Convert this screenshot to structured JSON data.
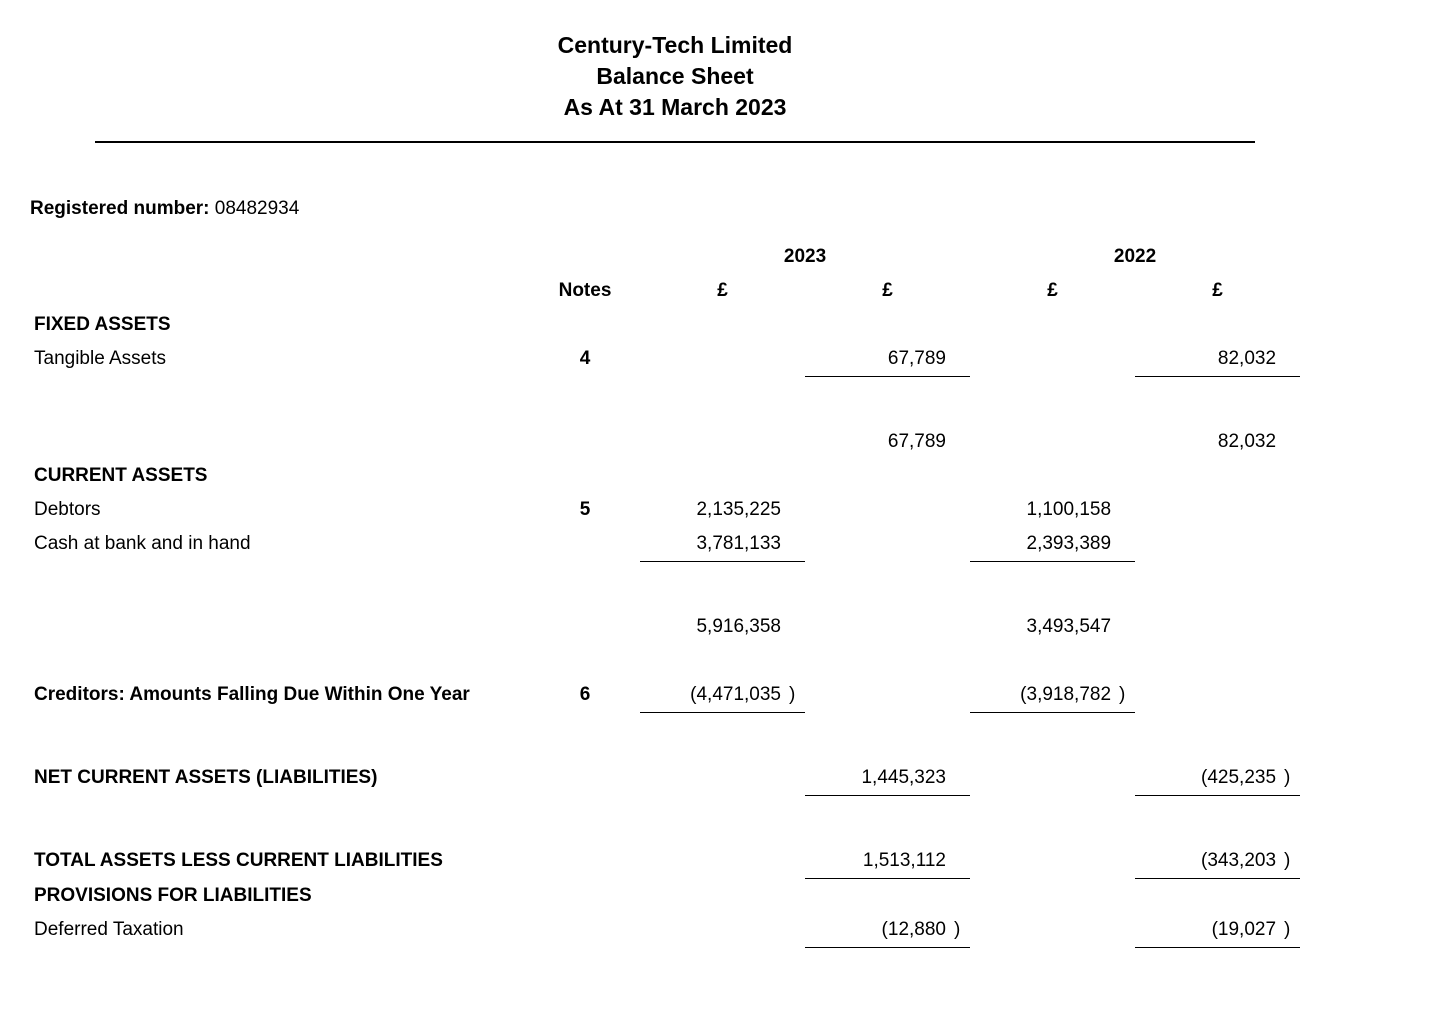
{
  "title": {
    "company": "Century-Tech Limited",
    "statement": "Balance Sheet",
    "asat": "As At 31 March 2023"
  },
  "registered": {
    "label": "Registered number:",
    "value": "08482934"
  },
  "headers": {
    "notes": "Notes",
    "year_2023": "2023",
    "year_2022": "2022",
    "currency": "£"
  },
  "sections": {
    "fixed_assets": "FIXED ASSETS",
    "current_assets": "CURRENT ASSETS",
    "creditors_within_one_year": "Creditors: Amounts Falling Due Within One Year",
    "net_current": "NET CURRENT ASSETS (LIABILITIES)",
    "total_less_current": "TOTAL ASSETS LESS CURRENT LIABILITIES",
    "provisions": "PROVISIONS FOR LIABILITIES"
  },
  "rows": {
    "tangible_assets": {
      "label": "Tangible Assets",
      "note": "4",
      "v2023_outer": "67,789",
      "v2022_outer": "82,032"
    },
    "fixed_assets_total": {
      "v2023_outer": "67,789",
      "v2022_outer": "82,032"
    },
    "debtors": {
      "label": "Debtors",
      "note": "5",
      "v2023_inner": "2,135,225",
      "v2022_inner": "1,100,158"
    },
    "cash": {
      "label": "Cash at bank and in hand",
      "v2023_inner": "3,781,133",
      "v2022_inner": "2,393,389"
    },
    "current_assets_total": {
      "v2023_inner": "5,916,358",
      "v2022_inner": "3,493,547"
    },
    "creditors": {
      "note": "6",
      "v2023_inner": "(4,471,035",
      "v2023_inner_p": ")",
      "v2022_inner": "(3,918,782",
      "v2022_inner_p": ")"
    },
    "net_current": {
      "v2023_outer": "1,445,323",
      "v2022_outer": "(425,235",
      "v2022_outer_p": ")"
    },
    "total_less_current": {
      "v2023_outer": "1,513,112",
      "v2022_outer": "(343,203",
      "v2022_outer_p": ")"
    },
    "deferred_tax": {
      "label": "Deferred Taxation",
      "v2023_outer": "(12,880",
      "v2023_outer_p": ")",
      "v2022_outer": "(19,027",
      "v2022_outer_p": ")"
    }
  }
}
